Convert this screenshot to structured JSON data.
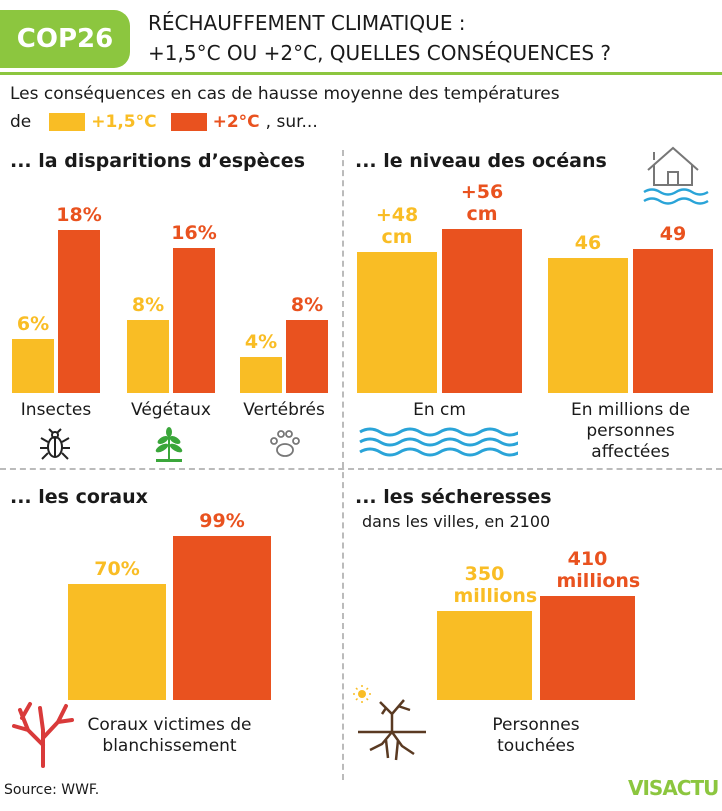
{
  "header": {
    "badge": "COP26",
    "title": [
      "RÉCHAUFFEMENT CLIMATIQUE :",
      "+1,5°C OU +2°C, QUELLES CONSÉQUENCES ?"
    ]
  },
  "intro": {
    "line1": "Les conséquences en cas de hausse moyenne des températures",
    "prefix": "de",
    "suffix": ", sur..."
  },
  "chart_data": [
    {
      "type": "bar",
      "title": "... la disparitions d’espèces",
      "categories": [
        "Insectes",
        "Végétaux",
        "Vertébrés"
      ],
      "series": [
        {
          "name": "+1,5°C",
          "color": "#f9bd25",
          "values": [
            6,
            8,
            4
          ],
          "value_labels": [
            "6%",
            "8%",
            "4%"
          ]
        },
        {
          "name": "+2°C",
          "color": "#e9521f",
          "values": [
            18,
            16,
            8
          ],
          "value_labels": [
            "18%",
            "16%",
            "8%"
          ]
        }
      ]
    },
    {
      "type": "bar",
      "title": "... le niveau des océans",
      "categories": [
        "En cm",
        "En millions de personnes affectées"
      ],
      "series": [
        {
          "color": "#f9bd25",
          "values": [
            48,
            46
          ],
          "value_labels": [
            "+48 cm",
            "46"
          ]
        },
        {
          "color": "#e9521f",
          "values": [
            56,
            49
          ],
          "value_labels": [
            "+56 cm",
            "49"
          ]
        }
      ]
    },
    {
      "type": "bar",
      "title": "... les coraux",
      "categories": [
        "Coraux victimes de blanchissement"
      ],
      "series": [
        {
          "color": "#f9bd25",
          "values": [
            70
          ],
          "value_labels": [
            "70%"
          ]
        },
        {
          "color": "#e9521f",
          "values": [
            99
          ],
          "value_labels": [
            "99%"
          ]
        }
      ]
    },
    {
      "type": "bar",
      "title": "... les sécheresses",
      "subtitle": "dans les villes, en 2100",
      "categories": [
        "Personnes touchées"
      ],
      "series": [
        {
          "color": "#f9bd25",
          "values": [
            350
          ],
          "value_labels": [
            "350 millions"
          ]
        },
        {
          "color": "#e9521f",
          "values": [
            410
          ],
          "value_labels": [
            "410 millions"
          ]
        }
      ]
    }
  ],
  "source": "Source: WWF.",
  "logo": "VISACTU"
}
